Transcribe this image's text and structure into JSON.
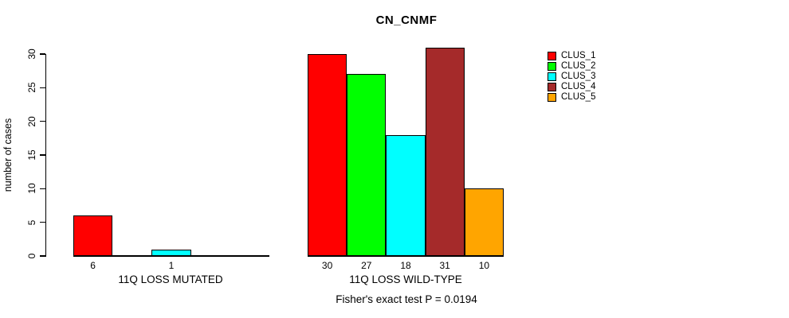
{
  "chart_data": {
    "type": "bar",
    "title": "CN_CNMF",
    "ylabel": "number of cases",
    "ylim": [
      0,
      30
    ],
    "yticks": [
      0,
      5,
      10,
      15,
      20,
      25,
      30
    ],
    "grid": false,
    "legend_position": "right",
    "clusters": [
      {
        "name": "CLUS_1",
        "color": "#FF0000"
      },
      {
        "name": "CLUS_2",
        "color": "#00FF00"
      },
      {
        "name": "CLUS_3",
        "color": "#00FFFF"
      },
      {
        "name": "CLUS_4",
        "color": "#A52A2A"
      },
      {
        "name": "CLUS_5",
        "color": "#FFA500"
      }
    ],
    "groups": [
      {
        "label": "11Q LOSS MUTATED",
        "values": [
          6,
          0,
          1,
          0,
          0
        ]
      },
      {
        "label": "11Q LOSS WILD-TYPE",
        "values": [
          30,
          27,
          18,
          31,
          10
        ]
      }
    ],
    "annotation": "Fisher's exact test P = 0.0194"
  }
}
